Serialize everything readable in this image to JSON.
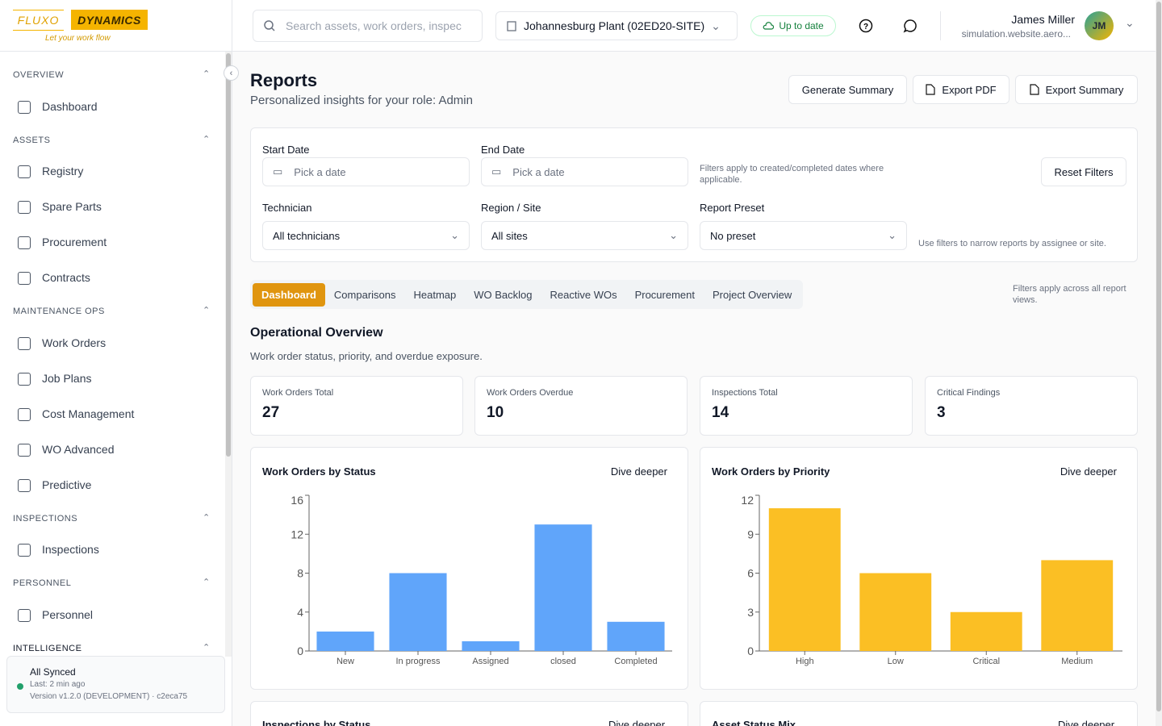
{
  "brand": {
    "left": "FLUXO",
    "right": "DYNAMICS",
    "tagline": "Let your work flow"
  },
  "topbar": {
    "search_placeholder": "Search assets, work orders, inspec",
    "site": "Johannesburg Plant (02ED20-SITE)",
    "sync_status": "Up to date",
    "user": {
      "name": "James Miller",
      "email": "simulation.website.aero...",
      "initials": "JM"
    }
  },
  "sidebar": {
    "sections": [
      {
        "title": "OVERVIEW",
        "items": [
          "Dashboard"
        ]
      },
      {
        "title": "ASSETS",
        "items": [
          "Registry",
          "Spare Parts",
          "Procurement",
          "Contracts"
        ]
      },
      {
        "title": "MAINTENANCE OPS",
        "items": [
          "Work Orders",
          "Job Plans",
          "Cost Management",
          "WO Advanced",
          "Predictive"
        ]
      },
      {
        "title": "INSPECTIONS",
        "items": [
          "Inspections"
        ]
      },
      {
        "title": "PERSONNEL",
        "items": [
          "Personnel"
        ]
      },
      {
        "title": "INTELLIGENCE"
      }
    ],
    "footer": {
      "status": "All Synced",
      "last": "Last: 2 min ago",
      "version": "Version v1.2.0 (DEVELOPMENT) · c2eca75"
    }
  },
  "header": {
    "title": "Reports",
    "subtitle": "Personalized insights for your role: Admin",
    "actions": [
      "Generate Summary",
      "Export PDF",
      "Export Summary"
    ]
  },
  "filters": {
    "start_date": {
      "label": "Start Date",
      "placeholder": "Pick a date"
    },
    "end_date": {
      "label": "End Date",
      "placeholder": "Pick a date"
    },
    "note": "Filters apply to created/completed dates where applicable.",
    "reset": "Reset Filters",
    "technician": {
      "label": "Technician",
      "value": "All technicians"
    },
    "region": {
      "label": "Region / Site",
      "value": "All sites"
    },
    "preset": {
      "label": "Report Preset",
      "value": "No preset"
    },
    "hint": "Use filters to narrow reports by assignee or site."
  },
  "tabs": {
    "items": [
      "Dashboard",
      "Comparisons",
      "Heatmap",
      "WO Backlog",
      "Reactive WOs",
      "Procurement",
      "Project Overview"
    ],
    "note": "Filters apply across all report views."
  },
  "overview": {
    "title": "Operational Overview",
    "subtitle": "Work order status, priority, and overdue exposure.",
    "kpis": [
      {
        "label": "Work Orders Total",
        "value": 27
      },
      {
        "label": "Work Orders Overdue",
        "value": 10
      },
      {
        "label": "Inspections Total",
        "value": 14
      },
      {
        "label": "Critical Findings",
        "value": 3
      }
    ]
  },
  "chart_data": [
    {
      "type": "bar",
      "title": "Work Orders by Status",
      "link": "Dive deeper",
      "categories": [
        "New",
        "In progress",
        "Assigned",
        "closed",
        "Completed"
      ],
      "values": [
        2,
        8,
        1,
        13,
        3
      ],
      "color": "#60a5fa",
      "ylim": [
        0,
        16
      ],
      "yticks": [
        0,
        4,
        8,
        12,
        16
      ]
    },
    {
      "type": "bar",
      "title": "Work Orders by Priority",
      "link": "Dive deeper",
      "categories": [
        "High",
        "Low",
        "Critical",
        "Medium"
      ],
      "values": [
        11,
        6,
        3,
        7
      ],
      "color": "#fbbf24",
      "ylim": [
        0,
        12
      ],
      "yticks": [
        0,
        3,
        6,
        9,
        12
      ]
    }
  ],
  "more_cards": [
    {
      "title": "Inspections by Status",
      "link": "Dive deeper"
    },
    {
      "title": "Asset Status Mix",
      "link": "Dive deeper"
    }
  ]
}
